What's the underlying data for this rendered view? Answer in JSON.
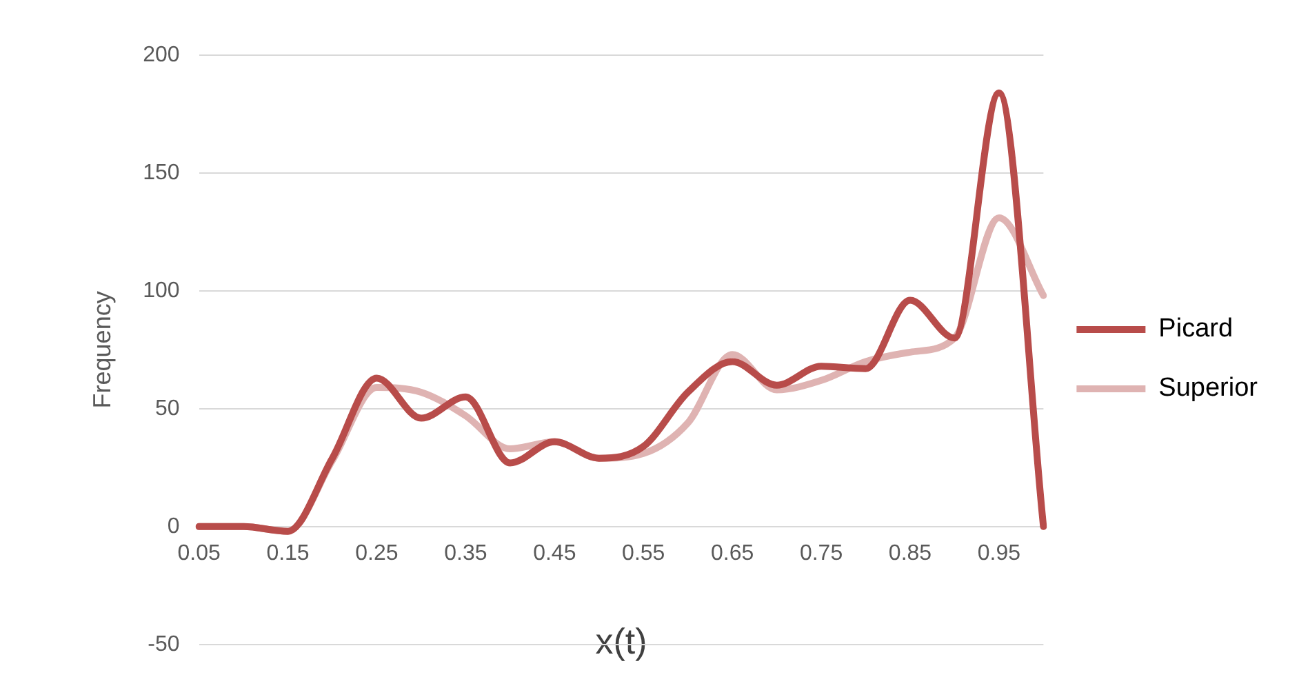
{
  "chart_data": {
    "type": "line",
    "ylabel": "Frequency",
    "xlabel": "x(t)",
    "categories": [
      "0.05",
      null,
      "0.15",
      null,
      "0.25",
      null,
      "0.35",
      null,
      "0.45",
      null,
      "0.55",
      null,
      "0.65",
      null,
      "0.75",
      null,
      "0.85",
      null,
      "0.95",
      null
    ],
    "series": [
      {
        "name": "Picard",
        "color": "#b84c4a",
        "values": [
          0,
          0,
          -2,
          29,
          63,
          46,
          55,
          27,
          36,
          29,
          34,
          57,
          70,
          60,
          68,
          67,
          96,
          80,
          184,
          0
        ]
      },
      {
        "name": "Superior",
        "color": "#dfb3b2",
        "values": [
          0,
          0,
          -2,
          28,
          59,
          57,
          47,
          33,
          36,
          29,
          31,
          44,
          73,
          58,
          62,
          70,
          74,
          80,
          131,
          98
        ]
      }
    ],
    "ylim": [
      -50,
      200
    ],
    "yticks": [
      -50,
      0,
      50,
      100,
      150,
      200
    ],
    "grid": "y",
    "legend": "right",
    "marker": "none",
    "line_style": "solid"
  }
}
